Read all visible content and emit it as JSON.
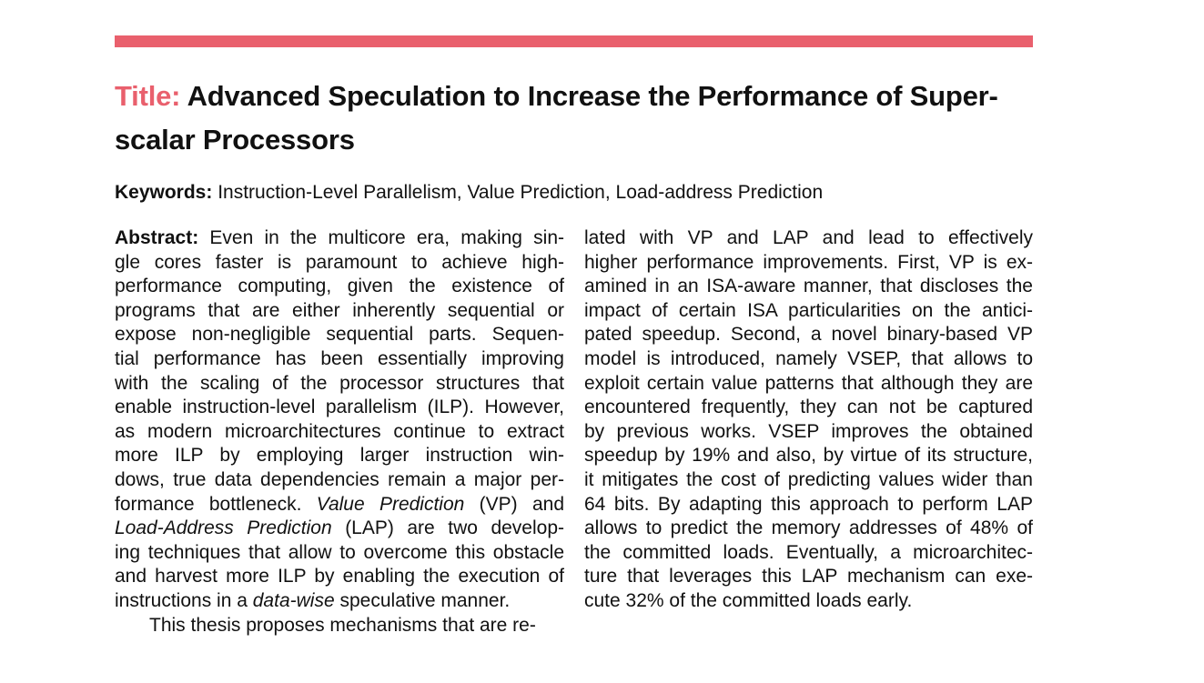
{
  "header": {
    "accent_color": "#e9606d"
  },
  "title": {
    "label": "Title:",
    "line1": "Advanced Speculation to Increase the Performance of Super-",
    "line2": "scalar Processors"
  },
  "keywords": {
    "label": "Keywords:",
    "text": "Instruction-Level Parallelism, Value Prediction, Load-address Prediction"
  },
  "abstract": {
    "label": "Abstract:",
    "left_lines": [
      "Even in the multicore era, making sin-",
      "gle cores faster is paramount to achieve high-",
      "performance computing, given the existence of",
      "programs that are either inherently sequential or",
      "expose non-negligible sequential parts. Sequen-",
      "tial performance has been essentially improving",
      "with the scaling of the processor structures that",
      "enable instruction-level parallelism (ILP). However,",
      "as modern microarchitectures continue to extract",
      "more ILP by employing larger instruction win-",
      "dows, true data dependencies remain a major per-",
      "formance bottleneck.",
      "Value Prediction",
      "(VP) and",
      "Load-Address Prediction",
      "(LAP) are two develop-",
      "ing techniques that allow to overcome this obstacle",
      "and harvest more ILP by enabling the execution of",
      "instructions in a",
      "data-wise",
      "speculative manner.",
      "This thesis proposes mechanisms that are re-"
    ],
    "right_lines": [
      "lated with VP and LAP and lead to effectively",
      "higher performance improvements. First, VP is ex-",
      "amined in an ISA-aware manner, that discloses the",
      "impact of certain ISA particularities on the antici-",
      "pated speedup. Second, a novel binary-based VP",
      "model is introduced, namely VSEP, that allows to",
      "exploit certain value patterns that although they are",
      "encountered frequently, they can not be captured",
      "by previous works. VSEP improves the obtained",
      "speedup by 19% and also, by virtue of its structure,",
      "it mitigates the cost of predicting values wider than",
      "64 bits. By adapting this approach to perform LAP",
      "allows to predict the memory addresses of 48% of",
      "the committed loads. Eventually, a microarchitec-",
      "ture that leverages this LAP mechanism can exe-",
      "cute 32% of the committed loads early."
    ]
  }
}
